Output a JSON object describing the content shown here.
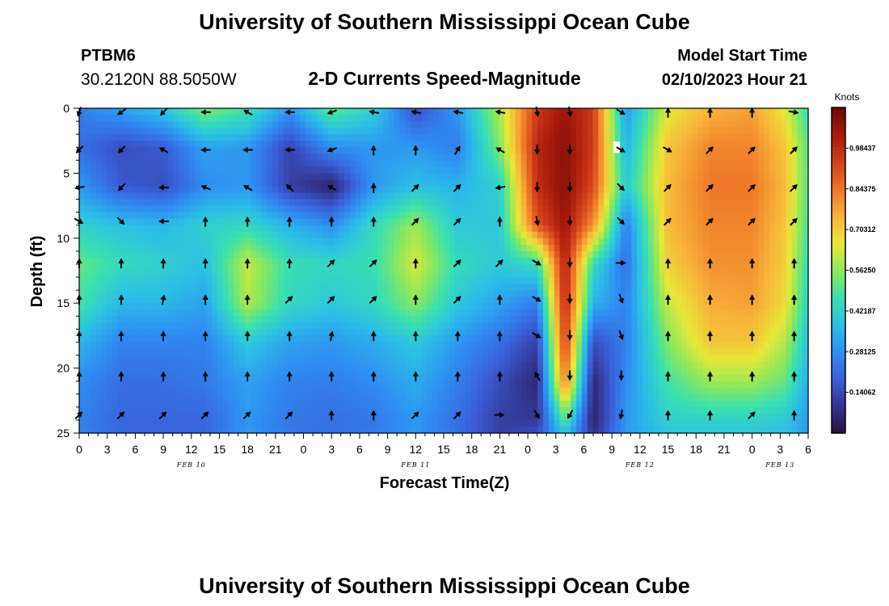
{
  "header": {
    "title": "University of Southern Mississippi Ocean Cube",
    "station_id": "PTBM6",
    "coordinates": "30.2120N  88.5050W",
    "subtitle": "2-D Currents Speed-Magnitude",
    "model_start_label": "Model Start Time",
    "model_start_value": "02/10/2023 Hour 21"
  },
  "footer": {
    "title": "University of Southern Mississippi Ocean Cube"
  },
  "chart_data": {
    "type": "heatmap",
    "title": "2-D Currents Speed-Magnitude",
    "xlabel": "Forecast Time(Z)",
    "ylabel": "Depth (ft)",
    "x_unit": "hours since Feb 10 00Z",
    "xlim": [
      0,
      78
    ],
    "ylim": [
      0,
      25
    ],
    "y_inverted": true,
    "x_ticks": [
      0,
      3,
      6,
      9,
      12,
      15,
      18,
      21,
      24,
      27,
      30,
      33,
      36,
      39,
      42,
      45,
      48,
      51,
      54,
      57,
      60,
      63,
      66,
      69,
      72,
      75,
      78
    ],
    "x_tick_labels": [
      "0",
      "3",
      "6",
      "9",
      "12",
      "15",
      "18",
      "21",
      "0",
      "3",
      "6",
      "9",
      "12",
      "15",
      "18",
      "21",
      "0",
      "3",
      "6",
      "9",
      "12",
      "15",
      "18",
      "21",
      "0",
      "3",
      "6"
    ],
    "y_ticks": [
      0,
      5,
      10,
      15,
      20,
      25
    ],
    "y_tick_labels": [
      "0",
      "5",
      "10",
      "15",
      "20",
      "25"
    ],
    "date_labels": [
      {
        "hour": 12,
        "text": "FEB 10"
      },
      {
        "hour": 36,
        "text": "FEB 11"
      },
      {
        "hour": 60,
        "text": "FEB 12"
      },
      {
        "hour": 75,
        "text": "FEB 13"
      }
    ],
    "colorbar": {
      "label": "Knots",
      "range": [
        0,
        1.125
      ],
      "ticks": [
        0.98437,
        0.84375,
        0.70312,
        0.5625,
        0.42187,
        0.28125,
        0.14062
      ],
      "tick_labels": [
        "0.98437",
        "0.84375",
        "0.70312",
        "0.56250",
        "0.42187",
        "0.28125",
        "0.14062"
      ],
      "colors": [
        "#28123e",
        "#33348f",
        "#3a5fd8",
        "#2f8ef2",
        "#2cbfe6",
        "#3ae0b0",
        "#8ee85a",
        "#e8e838",
        "#f8b43a",
        "#ee7528",
        "#d2401b",
        "#a81a0b",
        "#6c0c06"
      ]
    },
    "speed_grid": {
      "hours": [
        0,
        4.5,
        9,
        13.5,
        18,
        22.5,
        27,
        31.5,
        36,
        40.5,
        45,
        49,
        52,
        55,
        58.5,
        63,
        67.5,
        72,
        75.5,
        78
      ],
      "depths": [
        0,
        3,
        6,
        9,
        12,
        15,
        18,
        21,
        24,
        25
      ],
      "values_knots": [
        [
          0.25,
          0.32,
          0.4,
          0.55,
          0.48,
          0.3,
          0.52,
          0.42,
          0.15,
          0.3,
          0.6,
          0.95,
          1.05,
          0.95,
          0.3,
          0.65,
          0.75,
          0.78,
          0.65,
          0.45
        ],
        [
          0.22,
          0.15,
          0.18,
          0.32,
          0.3,
          0.13,
          0.28,
          0.3,
          0.3,
          0.25,
          0.55,
          1.0,
          1.08,
          0.95,
          0.35,
          0.72,
          0.82,
          0.82,
          0.72,
          0.5
        ],
        [
          0.3,
          0.18,
          0.15,
          0.28,
          0.3,
          0.12,
          0.05,
          0.3,
          0.38,
          0.35,
          0.42,
          0.98,
          1.08,
          0.92,
          0.4,
          0.74,
          0.84,
          0.84,
          0.74,
          0.5
        ],
        [
          0.42,
          0.38,
          0.36,
          0.42,
          0.44,
          0.35,
          0.28,
          0.45,
          0.58,
          0.4,
          0.4,
          0.9,
          1.05,
          0.8,
          0.25,
          0.74,
          0.82,
          0.82,
          0.72,
          0.48
        ],
        [
          0.52,
          0.45,
          0.42,
          0.38,
          0.62,
          0.46,
          0.44,
          0.46,
          0.64,
          0.45,
          0.4,
          0.45,
          1.02,
          0.45,
          0.22,
          0.7,
          0.8,
          0.8,
          0.7,
          0.45
        ],
        [
          0.48,
          0.36,
          0.36,
          0.32,
          0.6,
          0.44,
          0.4,
          0.44,
          0.56,
          0.4,
          0.32,
          0.25,
          1.0,
          0.35,
          0.26,
          0.62,
          0.76,
          0.78,
          0.68,
          0.42
        ],
        [
          0.36,
          0.26,
          0.26,
          0.26,
          0.4,
          0.32,
          0.3,
          0.34,
          0.4,
          0.3,
          0.22,
          0.12,
          0.95,
          0.15,
          0.25,
          0.55,
          0.72,
          0.72,
          0.6,
          0.38
        ],
        [
          0.28,
          0.22,
          0.22,
          0.24,
          0.32,
          0.26,
          0.25,
          0.28,
          0.34,
          0.25,
          0.15,
          0.06,
          0.85,
          0.06,
          0.28,
          0.48,
          0.58,
          0.58,
          0.52,
          0.34
        ],
        [
          0.26,
          0.2,
          0.2,
          0.2,
          0.3,
          0.24,
          0.22,
          0.24,
          0.3,
          0.22,
          0.12,
          0.1,
          0.5,
          0.05,
          0.3,
          0.42,
          0.42,
          0.42,
          0.4,
          0.3
        ],
        [
          0.26,
          0.2,
          0.2,
          0.2,
          0.3,
          0.24,
          0.22,
          0.24,
          0.3,
          0.22,
          0.12,
          0.15,
          0.4,
          0.08,
          0.3,
          0.4,
          0.4,
          0.4,
          0.38,
          0.3
        ]
      ]
    },
    "vector_grid": {
      "hours": [
        0,
        4.5,
        9,
        13.5,
        18,
        22.5,
        27,
        31.5,
        36,
        40.5,
        45,
        49,
        52.5,
        58,
        63,
        67.5,
        72,
        76.5
      ],
      "depths": [
        0.3,
        3.2,
        6.1,
        8.7,
        11.9,
        14.7,
        17.5,
        20.6,
        23.6
      ],
      "directions_deg": [
        [
          200,
          235,
          225,
          270,
          300,
          270,
          250,
          280,
          280,
          280,
          280,
          170,
          170,
          120,
          0,
          0,
          0,
          100
        ],
        [
          225,
          225,
          300,
          270,
          270,
          270,
          250,
          0,
          0,
          30,
          300,
          180,
          180,
          120,
          120,
          45,
          45,
          45
        ],
        [
          260,
          225,
          270,
          290,
          300,
          315,
          300,
          0,
          45,
          45,
          260,
          180,
          180,
          135,
          45,
          45,
          45,
          45
        ],
        [
          120,
          135,
          270,
          0,
          0,
          0,
          0,
          0,
          45,
          45,
          0,
          170,
          180,
          135,
          45,
          45,
          45,
          45
        ],
        [
          0,
          0,
          0,
          0,
          0,
          0,
          45,
          45,
          0,
          45,
          45,
          120,
          180,
          90,
          0,
          0,
          0,
          0
        ],
        [
          0,
          0,
          10,
          0,
          0,
          45,
          45,
          45,
          0,
          45,
          0,
          120,
          180,
          160,
          0,
          0,
          0,
          0
        ],
        [
          0,
          0,
          0,
          0,
          0,
          0,
          10,
          0,
          0,
          0,
          0,
          120,
          180,
          160,
          0,
          0,
          0,
          0
        ],
        [
          0,
          0,
          0,
          0,
          0,
          0,
          0,
          0,
          0,
          0,
          0,
          330,
          180,
          180,
          0,
          0,
          0,
          0
        ],
        [
          45,
          45,
          45,
          45,
          45,
          45,
          0,
          0,
          45,
          45,
          90,
          150,
          210,
          190,
          0,
          0,
          45,
          0
        ]
      ]
    },
    "marker": {
      "hour": 57.5,
      "depth": 3.0
    }
  }
}
